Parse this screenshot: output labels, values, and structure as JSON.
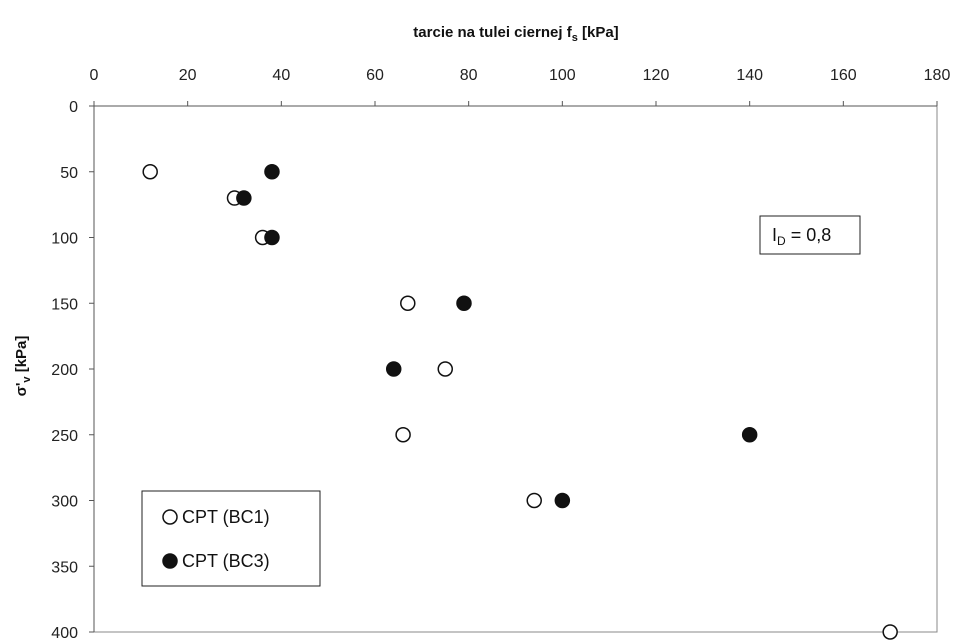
{
  "chart_data": {
    "type": "scatter",
    "title": "",
    "xlabel": {
      "main": "tarcie na tulei ciernej f",
      "sub": "s",
      "unit": " [kPa]"
    },
    "ylabel": {
      "main": "σ'",
      "sub": "v",
      "unit": " [kPa]"
    },
    "xlim": [
      0,
      180
    ],
    "ylim": [
      0,
      400
    ],
    "x_axis_position": "top",
    "y_inverted": true,
    "x_ticks": [
      0,
      20,
      40,
      60,
      80,
      100,
      120,
      140,
      160,
      180
    ],
    "y_ticks": [
      0,
      50,
      100,
      150,
      200,
      250,
      300,
      350,
      400
    ],
    "grid": false,
    "legend_position": "bottom-left",
    "series": [
      {
        "name": "CPT (BC1)",
        "marker": "open-circle",
        "color": "#111111",
        "points": [
          {
            "x": 12,
            "y": 50
          },
          {
            "x": 30,
            "y": 70
          },
          {
            "x": 36,
            "y": 100
          },
          {
            "x": 67,
            "y": 150
          },
          {
            "x": 75,
            "y": 200
          },
          {
            "x": 66,
            "y": 250
          },
          {
            "x": 94,
            "y": 300
          },
          {
            "x": 170,
            "y": 400
          }
        ]
      },
      {
        "name": "CPT (BC3)",
        "marker": "filled-circle",
        "color": "#111111",
        "points": [
          {
            "x": 38,
            "y": 50
          },
          {
            "x": 32,
            "y": 70
          },
          {
            "x": 38,
            "y": 100
          },
          {
            "x": 79,
            "y": 150
          },
          {
            "x": 64,
            "y": 200
          },
          {
            "x": 140,
            "y": 250
          },
          {
            "x": 100,
            "y": 300
          }
        ]
      }
    ],
    "annotation": {
      "main": "I",
      "sub": "D",
      "rest": " = 0,8",
      "position": "upper-right"
    }
  }
}
